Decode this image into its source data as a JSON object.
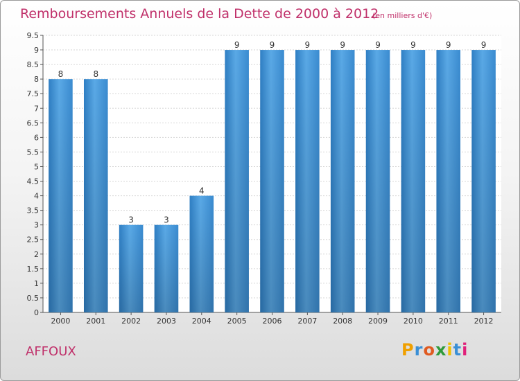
{
  "header": {
    "title": "Remboursements Annuels de la Dette de 2000 à 2012",
    "subtitle": "(en milliers d'€)"
  },
  "footer": {
    "commune": "AFFOUX",
    "logo_text": "Proxiti"
  },
  "colors": {
    "bar": "#4b9ee0",
    "title": "#c0306a"
  },
  "chart_data": {
    "type": "bar",
    "categories": [
      "2000",
      "2001",
      "2002",
      "2003",
      "2004",
      "2005",
      "2006",
      "2007",
      "2008",
      "2009",
      "2010",
      "2011",
      "2012"
    ],
    "values": [
      8,
      8,
      3,
      3,
      4,
      9,
      9,
      9,
      9,
      9,
      9,
      9,
      9
    ],
    "data_labels": [
      "8",
      "8",
      "3",
      "3",
      "4",
      "9",
      "9",
      "9",
      "9",
      "9",
      "9",
      "9",
      "9"
    ],
    "ylim": [
      0,
      9.5
    ],
    "yticks": [
      "0",
      "0.5",
      "1",
      "1.5",
      "2",
      "2.5",
      "3",
      "3.5",
      "4",
      "4.5",
      "5",
      "5.5",
      "6",
      "6.5",
      "7",
      "7.5",
      "8",
      "8.5",
      "9",
      "9.5"
    ],
    "grid": true,
    "xlabel": "",
    "ylabel": ""
  }
}
